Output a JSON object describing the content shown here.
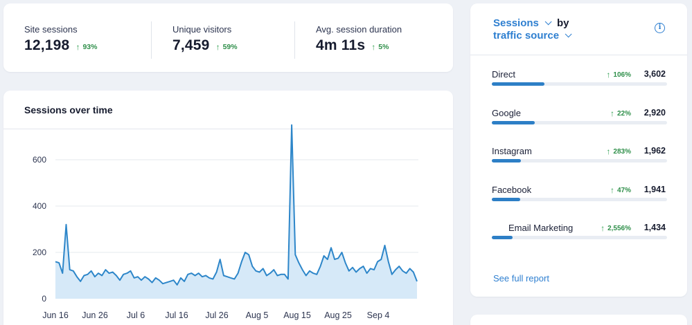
{
  "kpis": [
    {
      "label": "Site sessions",
      "value": "12,198",
      "change": "93%"
    },
    {
      "label": "Unique visitors",
      "value": "7,459",
      "change": "59%"
    },
    {
      "label": "Avg. session duration",
      "value": "4m 11s",
      "change": "5%"
    }
  ],
  "colors": {
    "accent": "#2e7fd0",
    "positive": "#2f8f4a",
    "line": "#2d86c9",
    "area": "#d6e9f8",
    "bar": "#2d7fc6"
  },
  "chart_title": "Sessions over time",
  "chart_data": {
    "type": "area",
    "title": "Sessions over time",
    "xlabel": "",
    "ylabel": "",
    "ylim": [
      0,
      600
    ],
    "grid": true,
    "y_ticks": [
      0,
      200,
      400,
      600
    ],
    "x_ticks": [
      "Jun 16",
      "Jun 26",
      "Jul 6",
      "Jul 16",
      "Jul 26",
      "Aug 5",
      "Aug 15",
      "Aug 25",
      "Sep 4"
    ],
    "x_start_tick": "Jun 16",
    "series": [
      {
        "values": [
          160,
          155,
          110,
          320,
          125,
          120,
          95,
          75,
          100,
          105,
          120,
          95,
          110,
          100,
          125,
          110,
          115,
          100,
          80,
          105,
          110,
          120,
          90,
          95,
          80,
          95,
          85,
          70,
          90,
          80,
          65,
          70,
          75,
          80,
          60,
          90,
          75,
          105,
          110,
          100,
          110,
          95,
          100,
          90,
          85,
          115,
          170,
          100,
          95,
          90,
          85,
          110,
          160,
          200,
          190,
          140,
          120,
          115,
          130,
          100,
          110,
          125,
          100,
          105,
          105,
          85,
          750,
          190,
          155,
          125,
          100,
          120,
          110,
          105,
          140,
          185,
          170,
          220,
          170,
          175,
          200,
          155,
          120,
          135,
          115,
          130,
          140,
          110,
          130,
          125,
          160,
          170,
          230,
          160,
          105,
          125,
          140,
          120,
          110,
          130,
          115,
          75
        ]
      }
    ]
  },
  "source": {
    "metric": "Sessions",
    "by": "by",
    "dimension": "traffic source",
    "info_icon": "info-icon",
    "items": [
      {
        "name": "Direct",
        "change": "106%",
        "value": "3,602",
        "share": 0.3
      },
      {
        "name": "Google",
        "change": "22%",
        "value": "2,920",
        "share": 0.245
      },
      {
        "name": "Instagram",
        "change": "283%",
        "value": "1,962",
        "share": 0.165
      },
      {
        "name": "Facebook",
        "change": "47%",
        "value": "1,941",
        "share": 0.163
      },
      {
        "name": "Email Marketing",
        "change": "2,556%",
        "value": "1,434",
        "share": 0.12
      }
    ],
    "see_full_report": "See full report"
  }
}
